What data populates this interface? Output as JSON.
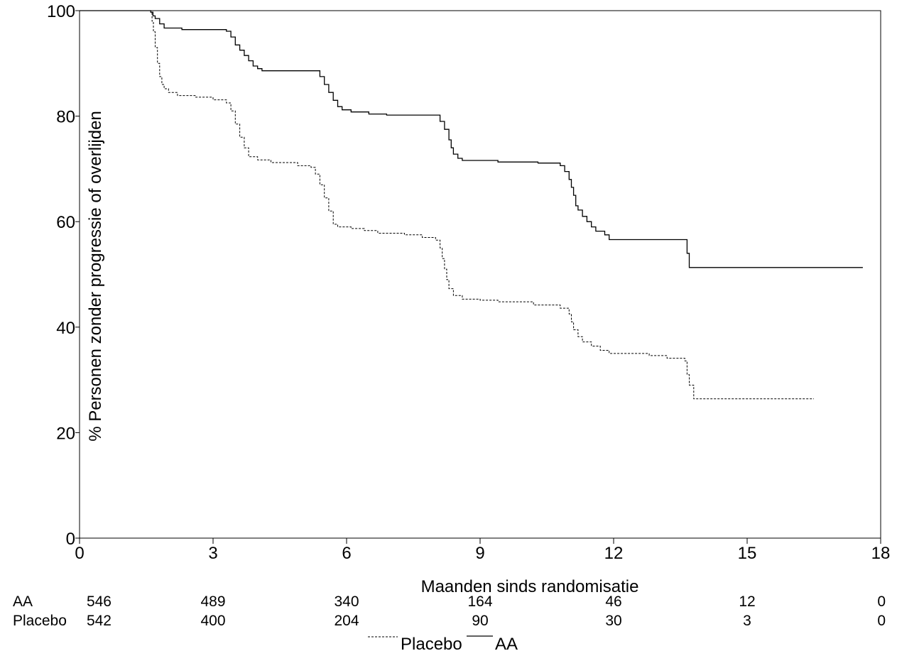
{
  "chart_data": {
    "type": "line",
    "title": "",
    "xlabel": "Maanden sinds randomisatie",
    "ylabel": "% Personen zonder progressie of overlijden",
    "xlim": [
      0,
      18
    ],
    "ylim": [
      0,
      100
    ],
    "x_ticks": [
      0,
      3,
      6,
      9,
      12,
      15,
      18
    ],
    "y_ticks": [
      0,
      20,
      40,
      60,
      80,
      100
    ],
    "grid": false,
    "legend_position": "bottom",
    "series": [
      {
        "name": "AA",
        "line_style": "solid",
        "points": [
          [
            0,
            100
          ],
          [
            1.6,
            99.7
          ],
          [
            1.65,
            99
          ],
          [
            1.7,
            98.5
          ],
          [
            1.8,
            97.5
          ],
          [
            1.9,
            96.7
          ],
          [
            2.3,
            96.4
          ],
          [
            3.3,
            96.1
          ],
          [
            3.4,
            95
          ],
          [
            3.5,
            93.5
          ],
          [
            3.6,
            92.5
          ],
          [
            3.7,
            91.5
          ],
          [
            3.8,
            90.5
          ],
          [
            3.9,
            89.5
          ],
          [
            4.0,
            89
          ],
          [
            4.1,
            88.6
          ],
          [
            5.3,
            88.6
          ],
          [
            5.4,
            87.5
          ],
          [
            5.5,
            86
          ],
          [
            5.6,
            84.5
          ],
          [
            5.7,
            83
          ],
          [
            5.8,
            81.8
          ],
          [
            5.9,
            81.2
          ],
          [
            6.1,
            80.8
          ],
          [
            6.5,
            80.4
          ],
          [
            6.9,
            80.2
          ],
          [
            8.0,
            80.2
          ],
          [
            8.1,
            79
          ],
          [
            8.2,
            77.5
          ],
          [
            8.3,
            75.5
          ],
          [
            8.35,
            74
          ],
          [
            8.4,
            72.8
          ],
          [
            8.5,
            72
          ],
          [
            8.6,
            71.6
          ],
          [
            9.3,
            71.6
          ],
          [
            9.4,
            71.3
          ],
          [
            10.3,
            71.1
          ],
          [
            10.8,
            70.6
          ],
          [
            10.9,
            69.5
          ],
          [
            11.0,
            68
          ],
          [
            11.05,
            66.5
          ],
          [
            11.1,
            65
          ],
          [
            11.15,
            63
          ],
          [
            11.2,
            62.2
          ],
          [
            11.3,
            61
          ],
          [
            11.4,
            60
          ],
          [
            11.5,
            59
          ],
          [
            11.6,
            58.2
          ],
          [
            11.8,
            57.5
          ],
          [
            11.9,
            56.6
          ],
          [
            13.6,
            56.6
          ],
          [
            13.65,
            54
          ],
          [
            13.7,
            51.3
          ],
          [
            17.6,
            51.3
          ]
        ]
      },
      {
        "name": "Placebo",
        "line_style": "dashed",
        "points": [
          [
            0,
            100
          ],
          [
            1.6,
            99.5
          ],
          [
            1.63,
            98
          ],
          [
            1.66,
            96
          ],
          [
            1.7,
            93
          ],
          [
            1.75,
            90
          ],
          [
            1.8,
            87.5
          ],
          [
            1.85,
            86
          ],
          [
            1.9,
            85.2
          ],
          [
            2.0,
            84.5
          ],
          [
            2.2,
            83.9
          ],
          [
            2.6,
            83.6
          ],
          [
            3.0,
            83.1
          ],
          [
            3.3,
            82.5
          ],
          [
            3.4,
            81
          ],
          [
            3.5,
            78.5
          ],
          [
            3.6,
            76
          ],
          [
            3.7,
            74
          ],
          [
            3.8,
            72.3
          ],
          [
            4.0,
            71.7
          ],
          [
            4.3,
            71.2
          ],
          [
            4.9,
            70.6
          ],
          [
            5.2,
            70.3
          ],
          [
            5.3,
            69
          ],
          [
            5.4,
            67
          ],
          [
            5.5,
            64.5
          ],
          [
            5.6,
            62
          ],
          [
            5.7,
            59.5
          ],
          [
            5.8,
            59
          ],
          [
            6.1,
            58.7
          ],
          [
            6.4,
            58.3
          ],
          [
            6.7,
            57.8
          ],
          [
            7.3,
            57.5
          ],
          [
            7.7,
            57
          ],
          [
            8.0,
            56.5
          ],
          [
            8.1,
            55
          ],
          [
            8.15,
            53
          ],
          [
            8.2,
            51
          ],
          [
            8.25,
            49
          ],
          [
            8.3,
            47.3
          ],
          [
            8.4,
            46
          ],
          [
            8.6,
            45.3
          ],
          [
            9.0,
            45.1
          ],
          [
            9.4,
            44.8
          ],
          [
            10.2,
            44.2
          ],
          [
            10.8,
            43.6
          ],
          [
            11.0,
            42.5
          ],
          [
            11.05,
            41
          ],
          [
            11.1,
            39.5
          ],
          [
            11.2,
            38.2
          ],
          [
            11.3,
            37.2
          ],
          [
            11.5,
            36.4
          ],
          [
            11.7,
            35.6
          ],
          [
            11.9,
            35
          ],
          [
            12.8,
            34.6
          ],
          [
            13.2,
            34.1
          ],
          [
            13.6,
            33.6
          ],
          [
            13.65,
            31
          ],
          [
            13.7,
            29
          ],
          [
            13.8,
            26.4
          ],
          [
            16.5,
            26.4
          ]
        ]
      }
    ],
    "risk_table": {
      "times": [
        0,
        3,
        6,
        9,
        12,
        15,
        18
      ],
      "rows": [
        {
          "label": "AA",
          "values": [
            "546",
            "489",
            "340",
            "164",
            "46",
            "12",
            "0"
          ]
        },
        {
          "label": "Placebo",
          "values": [
            "542",
            "400",
            "204",
            "90",
            "30",
            "3",
            "0"
          ]
        }
      ]
    },
    "legend": [
      {
        "label": "Placebo",
        "line_style": "dashed"
      },
      {
        "label": "AA",
        "line_style": "solid"
      }
    ]
  }
}
